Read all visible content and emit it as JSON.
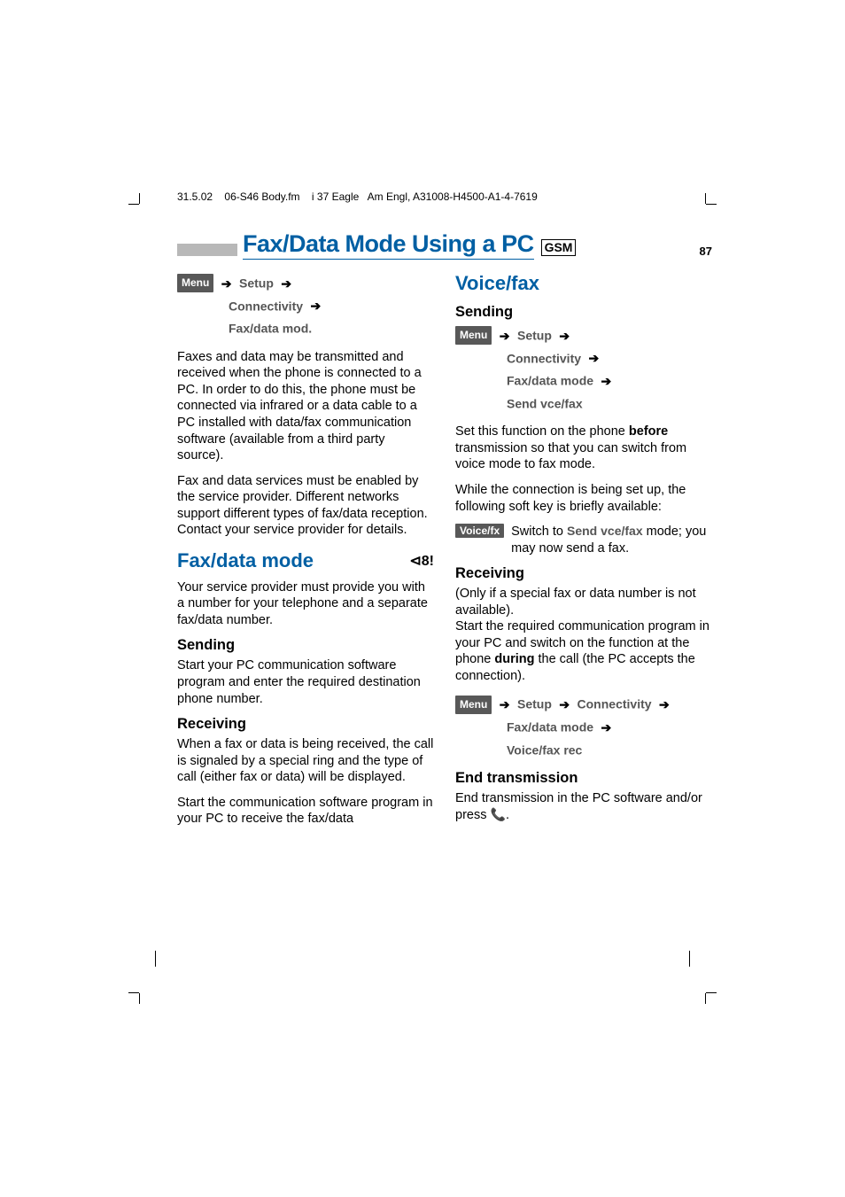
{
  "docheader": {
    "date": "31.5.02",
    "file": "06-S46 Body.fm",
    "rev": "i 37",
    "product": "Eagle",
    "lang": "Am Engl",
    "partno": ", A31008-H4500-A1-4-7619"
  },
  "title": "Fax/Data Mode Using a PC",
  "gsm": "GSM",
  "page_num": "87",
  "left": {
    "path1": {
      "menu": "Menu",
      "setup": "Setup",
      "conn": "Connectivity",
      "fdm": "Fax/data mod."
    },
    "p1": "Faxes and data may be transmitted and received when the phone is connected to a PC.  In order to do this, the phone must be connected via infrared or a data cable to a PC installed with data/fax communication software (available from a third party source).",
    "p2": "Fax and data services must be enabled by the service provider. Different networks support different types of fax/data reception. Contact your service provider for details.",
    "h1": "Fax/data mode",
    "p3": "Your service provider must provide you with a number for your telephone and a separate fax/data number.",
    "h2_send": "Sending",
    "p4": "Start your PC communication software program and enter the required destination phone number.",
    "h2_recv": "Receiving",
    "p5": "When a fax or data is being received, the call is signaled by a special ring and the type of call (either fax or data) will be displayed.",
    "p6": "Start the communication software program in your PC to receive the fax/data"
  },
  "right": {
    "h1": "Voice/fax",
    "h2_send": "Sending",
    "path1": {
      "menu": "Menu",
      "setup": "Setup",
      "conn": "Connectivity",
      "fdm": "Fax/data mode",
      "svf": "Send vce/fax"
    },
    "p1a": "Set this function on the phone ",
    "p1b": "before",
    "p1c": " transmission so that you can switch from voice mode to fax mode.",
    "p2": "While the connection is being set up, the following soft key is briefly available:",
    "voicefx": "Voice/fx",
    "vfx_text_a": "Switch to ",
    "vfx_text_b": "Send vce/fax",
    "vfx_text_c": " mode; you may now send a fax.",
    "h2_recv": "Receiving",
    "p3": "(Only if a special fax or data number is not available).",
    "p4a": "Start the required communication program in your PC and switch on the function at the phone ",
    "p4b": "during",
    "p4c": " the call (the PC accepts the connection).",
    "path2": {
      "menu": "Menu",
      "setup": "Setup",
      "conn": "Connectivity",
      "fdm": "Fax/data mode",
      "vfr": "Voice/fax rec"
    },
    "h2_end": "End transmission",
    "p5a": "End transmission in the PC software and/or press ",
    "p5b": "."
  },
  "colors": {
    "title": "#005fa3",
    "menu_bg": "#585858",
    "bar": "#b8b8b8",
    "path_text": "#555555"
  }
}
